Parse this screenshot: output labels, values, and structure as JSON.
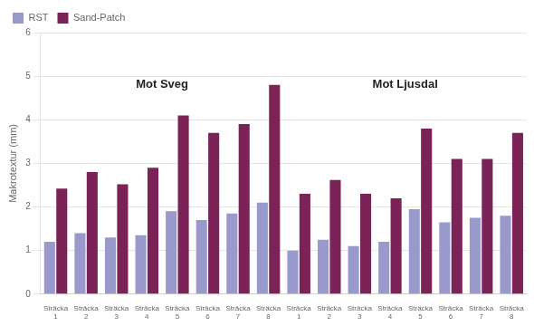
{
  "chart_data": {
    "type": "bar",
    "ylabel": "Makrotextur (mm)",
    "categories": [
      "Sträcka\n1",
      "Sträcka\n2",
      "Sträcka\n3",
      "Sträcka\n4",
      "Sträcka\n5",
      "Sträcka\n6",
      "Sträcka\n7",
      "Sträcka\n8",
      "Sträcka\n1",
      "Sträcka\n2",
      "Sträcka\n3",
      "Sträcka\n4",
      "Sträcka\n5",
      "Sträcka\n6",
      "Sträcka\n7",
      "Sträcka\n8"
    ],
    "series": [
      {
        "name": "RST",
        "color": "#9999CC",
        "values": [
          1.2,
          1.4,
          1.3,
          1.35,
          1.9,
          1.7,
          1.85,
          2.1,
          1.0,
          1.25,
          1.1,
          1.2,
          1.95,
          1.65,
          1.75,
          1.8
        ]
      },
      {
        "name": "Sand-Patch",
        "color": "#7B2257",
        "values": [
          2.42,
          2.8,
          2.52,
          2.9,
          4.1,
          3.7,
          3.9,
          4.8,
          2.3,
          2.62,
          2.3,
          2.2,
          3.8,
          3.1,
          3.1,
          3.7
        ]
      }
    ],
    "annotations": [
      "Mot Sveg",
      "Mot Ljusdal"
    ],
    "ylim": [
      0,
      6
    ],
    "yticks": [
      0,
      1,
      2,
      3,
      4,
      5,
      6
    ],
    "grid": true,
    "legend": "upper left"
  }
}
